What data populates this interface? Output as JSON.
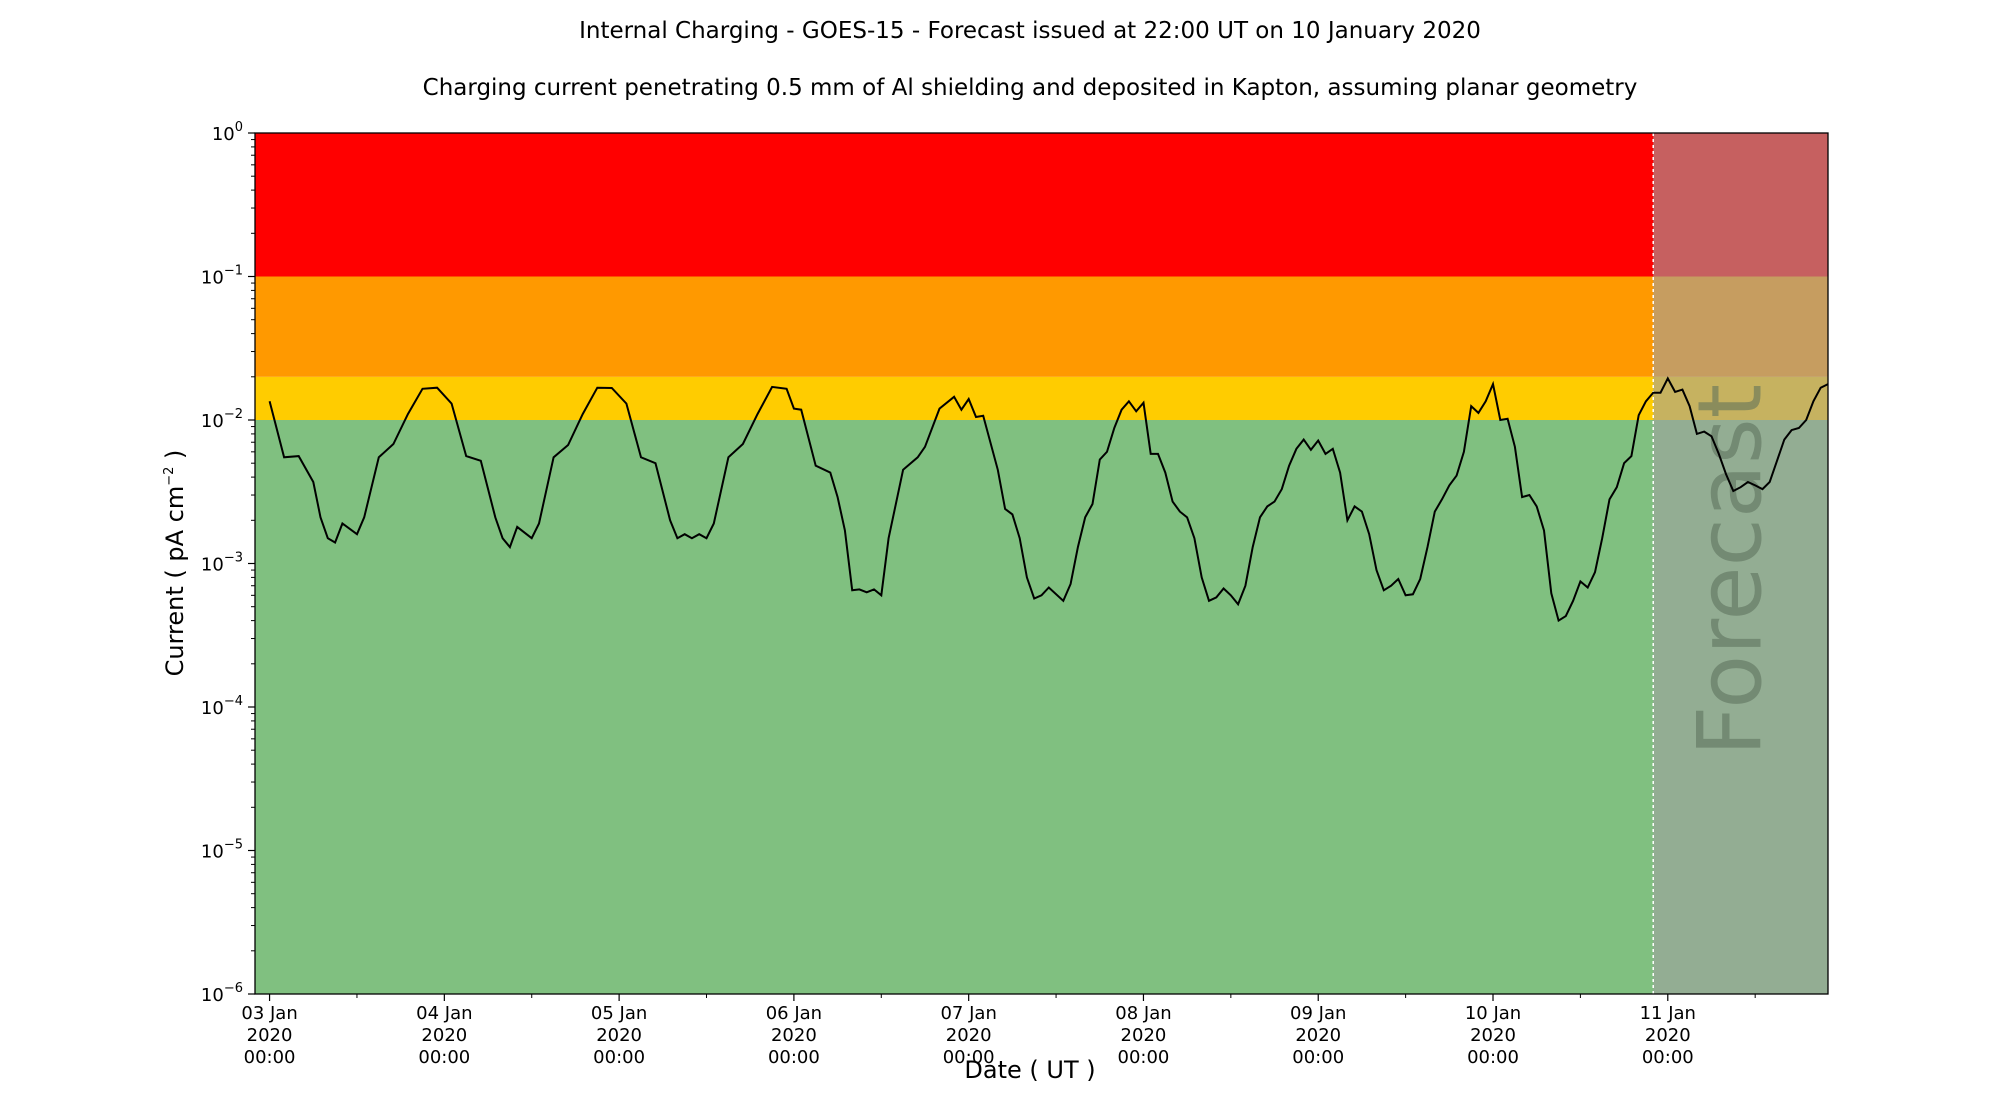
{
  "chart_data": {
    "type": "line",
    "title": "Internal Charging - GOES-15 - Forecast issued at 22:00 UT on 10 January 2020",
    "subtitle": "Charging current penetrating 0.5 mm of Al shielding and deposited in Kapton, assuming planar geometry",
    "xlabel": "Date ( UT )",
    "ylabel_main": "Current ( pA cm",
    "ylabel_exp": "−2",
    "ylabel_close": " )",
    "yscale": "log",
    "ylim": [
      1e-06,
      1
    ],
    "x_range_days": [
      "2020-01-02T22:00",
      "2020-01-11T22:00"
    ],
    "grid": false,
    "y_tick_base": "10",
    "y_ticks": [
      {
        "exp": "−6",
        "value": 1e-06
      },
      {
        "exp": "−5",
        "value": 1e-05
      },
      {
        "exp": "−4",
        "value": 0.0001
      },
      {
        "exp": "−3",
        "value": 0.001
      },
      {
        "exp": "−2",
        "value": 0.01
      },
      {
        "exp": "−1",
        "value": 0.1
      },
      {
        "exp": "0",
        "value": 1
      }
    ],
    "x_ticks": [
      {
        "date": "2020-01-03T00:00",
        "l1": "03 Jan",
        "l2": "2020",
        "l3": "00:00"
      },
      {
        "date": "2020-01-04T00:00",
        "l1": "04 Jan",
        "l2": "2020",
        "l3": "00:00"
      },
      {
        "date": "2020-01-05T00:00",
        "l1": "05 Jan",
        "l2": "2020",
        "l3": "00:00"
      },
      {
        "date": "2020-01-06T00:00",
        "l1": "06 Jan",
        "l2": "2020",
        "l3": "00:00"
      },
      {
        "date": "2020-01-07T00:00",
        "l1": "07 Jan",
        "l2": "2020",
        "l3": "00:00"
      },
      {
        "date": "2020-01-08T00:00",
        "l1": "08 Jan",
        "l2": "2020",
        "l3": "00:00"
      },
      {
        "date": "2020-01-09T00:00",
        "l1": "09 Jan",
        "l2": "2020",
        "l3": "00:00"
      },
      {
        "date": "2020-01-10T00:00",
        "l1": "10 Jan",
        "l2": "2020",
        "l3": "00:00"
      },
      {
        "date": "2020-01-11T00:00",
        "l1": "11 Jan",
        "l2": "2020",
        "l3": "00:00"
      }
    ],
    "bands": [
      {
        "from": 1e-06,
        "to": 0.01,
        "color": "#80c080"
      },
      {
        "from": 0.01,
        "to": 0.02,
        "color": "#ffcc00"
      },
      {
        "from": 0.02,
        "to": 0.1,
        "color": "#ff9900"
      },
      {
        "from": 0.1,
        "to": 1,
        "color": "#ff0000"
      }
    ],
    "forecast_start": "2020-01-10T22:00",
    "forecast_label": "Forecast",
    "forecast_overlay_color": "#a0a0a0",
    "line_color": "#000000",
    "series": [
      {
        "points": [
          [
            "2020-01-03T00:00",
            0.0135
          ],
          [
            "2020-01-03T02:00",
            0.0055
          ],
          [
            "2020-01-03T04:00",
            0.0056
          ],
          [
            "2020-01-03T06:00",
            0.0037
          ],
          [
            "2020-01-03T07:00",
            0.0021
          ],
          [
            "2020-01-03T08:00",
            0.0015
          ],
          [
            "2020-01-03T09:00",
            0.0014
          ],
          [
            "2020-01-03T10:00",
            0.0019
          ],
          [
            "2020-01-03T12:00",
            0.0016
          ],
          [
            "2020-01-03T13:00",
            0.0021
          ],
          [
            "2020-01-03T15:00",
            0.0055
          ],
          [
            "2020-01-03T17:00",
            0.0068
          ],
          [
            "2020-01-03T19:00",
            0.011
          ],
          [
            "2020-01-03T21:00",
            0.0165
          ],
          [
            "2020-01-03T23:00",
            0.0168
          ],
          [
            "2020-01-04T01:00",
            0.013
          ],
          [
            "2020-01-04T03:00",
            0.0056
          ],
          [
            "2020-01-04T05:00",
            0.0052
          ],
          [
            "2020-01-04T07:00",
            0.0021
          ],
          [
            "2020-01-04T08:00",
            0.0015
          ],
          [
            "2020-01-04T09:00",
            0.0013
          ],
          [
            "2020-01-04T10:00",
            0.0018
          ],
          [
            "2020-01-04T12:00",
            0.0015
          ],
          [
            "2020-01-04T13:00",
            0.0019
          ],
          [
            "2020-01-04T15:00",
            0.0055
          ],
          [
            "2020-01-04T17:00",
            0.0067
          ],
          [
            "2020-01-04T19:00",
            0.011
          ],
          [
            "2020-01-04T21:00",
            0.0168
          ],
          [
            "2020-01-04T23:00",
            0.0167
          ],
          [
            "2020-01-05T01:00",
            0.013
          ],
          [
            "2020-01-05T03:00",
            0.0055
          ],
          [
            "2020-01-05T05:00",
            0.005
          ],
          [
            "2020-01-05T07:00",
            0.002
          ],
          [
            "2020-01-05T08:00",
            0.0015
          ],
          [
            "2020-01-05T09:00",
            0.0016
          ],
          [
            "2020-01-05T10:00",
            0.0015
          ],
          [
            "2020-01-05T11:00",
            0.0016
          ],
          [
            "2020-01-05T12:00",
            0.0015
          ],
          [
            "2020-01-05T13:00",
            0.0019
          ],
          [
            "2020-01-05T15:00",
            0.0055
          ],
          [
            "2020-01-05T17:00",
            0.0068
          ],
          [
            "2020-01-05T19:00",
            0.011
          ],
          [
            "2020-01-05T21:00",
            0.017
          ],
          [
            "2020-01-05T23:00",
            0.0165
          ],
          [
            "2020-01-06T00:00",
            0.012
          ],
          [
            "2020-01-06T01:00",
            0.0118
          ],
          [
            "2020-01-06T03:00",
            0.0048
          ],
          [
            "2020-01-06T05:00",
            0.0043
          ],
          [
            "2020-01-06T06:00",
            0.0029
          ],
          [
            "2020-01-06T07:00",
            0.0017
          ],
          [
            "2020-01-06T08:00",
            0.00065
          ],
          [
            "2020-01-06T09:00",
            0.00066
          ],
          [
            "2020-01-06T10:00",
            0.00063
          ],
          [
            "2020-01-06T11:00",
            0.00066
          ],
          [
            "2020-01-06T12:00",
            0.0006
          ],
          [
            "2020-01-06T13:00",
            0.0015
          ],
          [
            "2020-01-06T15:00",
            0.0045
          ],
          [
            "2020-01-06T17:00",
            0.0055
          ],
          [
            "2020-01-06T18:00",
            0.0065
          ],
          [
            "2020-01-06T20:00",
            0.012
          ],
          [
            "2020-01-06T22:00",
            0.0145
          ],
          [
            "2020-01-06T23:00",
            0.0118
          ],
          [
            "2020-01-07T00:00",
            0.014
          ],
          [
            "2020-01-07T01:00",
            0.0105
          ],
          [
            "2020-01-07T02:00",
            0.0107
          ],
          [
            "2020-01-07T04:00",
            0.0045
          ],
          [
            "2020-01-07T05:00",
            0.0024
          ],
          [
            "2020-01-07T06:00",
            0.0022
          ],
          [
            "2020-01-07T07:00",
            0.0015
          ],
          [
            "2020-01-07T08:00",
            0.0008
          ],
          [
            "2020-01-07T09:00",
            0.00057
          ],
          [
            "2020-01-07T10:00",
            0.0006
          ],
          [
            "2020-01-07T11:00",
            0.00068
          ],
          [
            "2020-01-07T13:00",
            0.00055
          ],
          [
            "2020-01-07T14:00",
            0.00072
          ],
          [
            "2020-01-07T15:00",
            0.0013
          ],
          [
            "2020-01-07T16:00",
            0.0021
          ],
          [
            "2020-01-07T17:00",
            0.0026
          ],
          [
            "2020-01-07T18:00",
            0.0053
          ],
          [
            "2020-01-07T19:00",
            0.006
          ],
          [
            "2020-01-07T20:00",
            0.0088
          ],
          [
            "2020-01-07T21:00",
            0.0118
          ],
          [
            "2020-01-07T22:00",
            0.0135
          ],
          [
            "2020-01-07T23:00",
            0.0115
          ],
          [
            "2020-01-08T00:00",
            0.0132
          ],
          [
            "2020-01-08T01:00",
            0.0058
          ],
          [
            "2020-01-08T02:00",
            0.0058
          ],
          [
            "2020-01-08T03:00",
            0.0043
          ],
          [
            "2020-01-08T04:00",
            0.0027
          ],
          [
            "2020-01-08T05:00",
            0.0023
          ],
          [
            "2020-01-08T06:00",
            0.0021
          ],
          [
            "2020-01-08T07:00",
            0.0015
          ],
          [
            "2020-01-08T08:00",
            0.0008
          ],
          [
            "2020-01-08T09:00",
            0.00055
          ],
          [
            "2020-01-08T10:00",
            0.00058
          ],
          [
            "2020-01-08T11:00",
            0.00067
          ],
          [
            "2020-01-08T12:00",
            0.0006
          ],
          [
            "2020-01-08T13:00",
            0.00052
          ],
          [
            "2020-01-08T14:00",
            0.0007
          ],
          [
            "2020-01-08T15:00",
            0.0013
          ],
          [
            "2020-01-08T16:00",
            0.0021
          ],
          [
            "2020-01-08T17:00",
            0.0025
          ],
          [
            "2020-01-08T18:00",
            0.0027
          ],
          [
            "2020-01-08T19:00",
            0.0033
          ],
          [
            "2020-01-08T20:00",
            0.0048
          ],
          [
            "2020-01-08T21:00",
            0.0063
          ],
          [
            "2020-01-08T22:00",
            0.0073
          ],
          [
            "2020-01-08T23:00",
            0.0062
          ],
          [
            "2020-01-09T00:00",
            0.0072
          ],
          [
            "2020-01-09T01:00",
            0.0058
          ],
          [
            "2020-01-09T02:00",
            0.0063
          ],
          [
            "2020-01-09T03:00",
            0.0043
          ],
          [
            "2020-01-09T04:00",
            0.002
          ],
          [
            "2020-01-09T05:00",
            0.0025
          ],
          [
            "2020-01-09T06:00",
            0.0023
          ],
          [
            "2020-01-09T07:00",
            0.0016
          ],
          [
            "2020-01-09T08:00",
            0.0009
          ],
          [
            "2020-01-09T09:00",
            0.00065
          ],
          [
            "2020-01-09T10:00",
            0.0007
          ],
          [
            "2020-01-09T11:00",
            0.00078
          ],
          [
            "2020-01-09T12:00",
            0.0006
          ],
          [
            "2020-01-09T13:00",
            0.00061
          ],
          [
            "2020-01-09T14:00",
            0.00078
          ],
          [
            "2020-01-09T15:00",
            0.0013
          ],
          [
            "2020-01-09T16:00",
            0.0023
          ],
          [
            "2020-01-09T17:00",
            0.0028
          ],
          [
            "2020-01-09T18:00",
            0.0035
          ],
          [
            "2020-01-09T19:00",
            0.0041
          ],
          [
            "2020-01-09T20:00",
            0.006
          ],
          [
            "2020-01-09T21:00",
            0.0125
          ],
          [
            "2020-01-09T22:00",
            0.0112
          ],
          [
            "2020-01-09T23:00",
            0.0135
          ],
          [
            "2020-01-10T00:00",
            0.0178
          ],
          [
            "2020-01-10T01:00",
            0.01
          ],
          [
            "2020-01-10T02:00",
            0.0102
          ],
          [
            "2020-01-10T03:00",
            0.0065
          ],
          [
            "2020-01-10T04:00",
            0.0029
          ],
          [
            "2020-01-10T05:00",
            0.003
          ],
          [
            "2020-01-10T06:00",
            0.0025
          ],
          [
            "2020-01-10T07:00",
            0.0017
          ],
          [
            "2020-01-10T08:00",
            0.00062
          ],
          [
            "2020-01-10T09:00",
            0.0004
          ],
          [
            "2020-01-10T10:00",
            0.00043
          ],
          [
            "2020-01-10T11:00",
            0.00055
          ],
          [
            "2020-01-10T12:00",
            0.00075
          ],
          [
            "2020-01-10T13:00",
            0.00068
          ],
          [
            "2020-01-10T14:00",
            0.00087
          ],
          [
            "2020-01-10T15:00",
            0.0015
          ],
          [
            "2020-01-10T16:00",
            0.0028
          ],
          [
            "2020-01-10T17:00",
            0.0034
          ],
          [
            "2020-01-10T18:00",
            0.005
          ],
          [
            "2020-01-10T19:00",
            0.0056
          ],
          [
            "2020-01-10T20:00",
            0.0108
          ],
          [
            "2020-01-10T21:00",
            0.0135
          ],
          [
            "2020-01-10T22:00",
            0.0155
          ],
          [
            "2020-01-10T23:00",
            0.0155
          ],
          [
            "2020-01-11T00:00",
            0.0195
          ],
          [
            "2020-01-11T01:00",
            0.0157
          ],
          [
            "2020-01-11T02:00",
            0.0163
          ],
          [
            "2020-01-11T03:00",
            0.0125
          ],
          [
            "2020-01-11T04:00",
            0.008
          ],
          [
            "2020-01-11T05:00",
            0.0083
          ],
          [
            "2020-01-11T06:00",
            0.0077
          ],
          [
            "2020-01-11T07:00",
            0.0058
          ],
          [
            "2020-01-11T08:00",
            0.0042
          ],
          [
            "2020-01-11T09:00",
            0.0032
          ],
          [
            "2020-01-11T10:00",
            0.0034
          ],
          [
            "2020-01-11T11:00",
            0.0037
          ],
          [
            "2020-01-11T12:00",
            0.0035
          ],
          [
            "2020-01-11T13:00",
            0.0033
          ],
          [
            "2020-01-11T14:00",
            0.0037
          ],
          [
            "2020-01-11T15:00",
            0.0052
          ],
          [
            "2020-01-11T16:00",
            0.0073
          ],
          [
            "2020-01-11T17:00",
            0.0085
          ],
          [
            "2020-01-11T18:00",
            0.0088
          ],
          [
            "2020-01-11T19:00",
            0.01
          ],
          [
            "2020-01-11T20:00",
            0.0135
          ],
          [
            "2020-01-11T21:00",
            0.0168
          ],
          [
            "2020-01-11T22:00",
            0.0178
          ]
        ]
      }
    ]
  }
}
